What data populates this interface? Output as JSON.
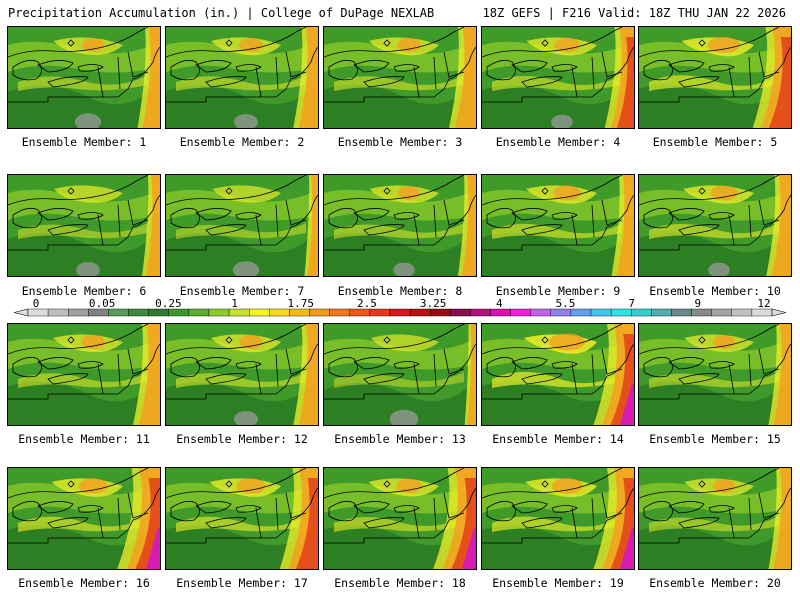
{
  "header": {
    "left": "Precipitation Accumulation (in.) | College of DuPage NEXLAB",
    "right": "18Z GEFS | F216 Valid: 18Z THU JAN 22 2026"
  },
  "members": [
    {
      "label": "Ensemble Member: 1",
      "intensity": 0.45,
      "east_wet": 0.5,
      "south_dry": 0.6
    },
    {
      "label": "Ensemble Member: 2",
      "intensity": 0.5,
      "east_wet": 0.55,
      "south_dry": 0.5
    },
    {
      "label": "Ensemble Member: 3",
      "intensity": 0.5,
      "east_wet": 0.6,
      "south_dry": 0.3
    },
    {
      "label": "Ensemble Member: 4",
      "intensity": 0.55,
      "east_wet": 0.65,
      "south_dry": 0.4
    },
    {
      "label": "Ensemble Member: 5",
      "intensity": 0.75,
      "east_wet": 0.85,
      "south_dry": 0.2
    },
    {
      "label": "Ensemble Member: 6",
      "intensity": 0.4,
      "east_wet": 0.4,
      "south_dry": 0.5
    },
    {
      "label": "Ensemble Member: 7",
      "intensity": 0.35,
      "east_wet": 0.3,
      "south_dry": 0.6
    },
    {
      "label": "Ensemble Member: 8",
      "intensity": 0.45,
      "east_wet": 0.4,
      "south_dry": 0.4
    },
    {
      "label": "Ensemble Member: 9",
      "intensity": 0.6,
      "east_wet": 0.5,
      "south_dry": 0.3
    },
    {
      "label": "Ensemble Member: 10",
      "intensity": 0.6,
      "east_wet": 0.55,
      "south_dry": 0.4
    },
    {
      "label": "Ensemble Member: 11",
      "intensity": 0.5,
      "east_wet": 0.6,
      "south_dry": 0.3
    },
    {
      "label": "Ensemble Member: 12",
      "intensity": 0.5,
      "east_wet": 0.55,
      "south_dry": 0.5
    },
    {
      "label": "Ensemble Member: 13",
      "intensity": 0.3,
      "east_wet": 0.25,
      "south_dry": 0.7
    },
    {
      "label": "Ensemble Member: 14",
      "intensity": 0.85,
      "east_wet": 0.9,
      "south_dry": 0.2
    },
    {
      "label": "Ensemble Member: 15",
      "intensity": 0.45,
      "east_wet": 0.5,
      "south_dry": 0.3
    },
    {
      "label": "Ensemble Member: 16",
      "intensity": 0.65,
      "east_wet": 0.95,
      "south_dry": 0.2
    },
    {
      "label": "Ensemble Member: 17",
      "intensity": 0.65,
      "east_wet": 0.85,
      "south_dry": 0.2
    },
    {
      "label": "Ensemble Member: 18",
      "intensity": 0.55,
      "east_wet": 0.95,
      "south_dry": 0.2
    },
    {
      "label": "Ensemble Member: 19",
      "intensity": 0.7,
      "east_wet": 0.9,
      "south_dry": 0.2
    },
    {
      "label": "Ensemble Member: 20",
      "intensity": 0.45,
      "east_wet": 0.5,
      "south_dry": 0.3
    }
  ],
  "legend": {
    "unit": "in.",
    "ticks": [
      "0",
      "0.05",
      "0.25",
      "1",
      "1.75",
      "2.5",
      "3.25",
      "4",
      "5.5",
      "7",
      "9",
      "12"
    ],
    "colors": [
      "#dcdcdc",
      "#bebebe",
      "#a0a0a0",
      "#828282",
      "#5a9a5a",
      "#3c8a3c",
      "#2e7d2e",
      "#3a9a28",
      "#58b028",
      "#8ccc2a",
      "#c8e02a",
      "#f4f428",
      "#f8d820",
      "#f8b818",
      "#f49818",
      "#f07818",
      "#ec5818",
      "#e63818",
      "#d81818",
      "#b81010",
      "#980c10",
      "#8c0c4a",
      "#b4107e",
      "#dc10b4",
      "#f020e0",
      "#c060f0",
      "#9080f0",
      "#60a0f0",
      "#40c8f0",
      "#30e4e8",
      "#30d0d0",
      "#50b0b0",
      "#6a8a8a",
      "#8a8a8a",
      "#a4a4a4",
      "#c0c0c0",
      "#dadada"
    ]
  },
  "palette": {
    "base_green": "#3f9a2a",
    "dark_green": "#2a7a22",
    "light_green": "#7ec228",
    "yellow": "#e8ec28",
    "orange": "#f4a020",
    "red": "#e2401a",
    "magenta": "#d416c4",
    "gray": "#9a9a9a"
  }
}
